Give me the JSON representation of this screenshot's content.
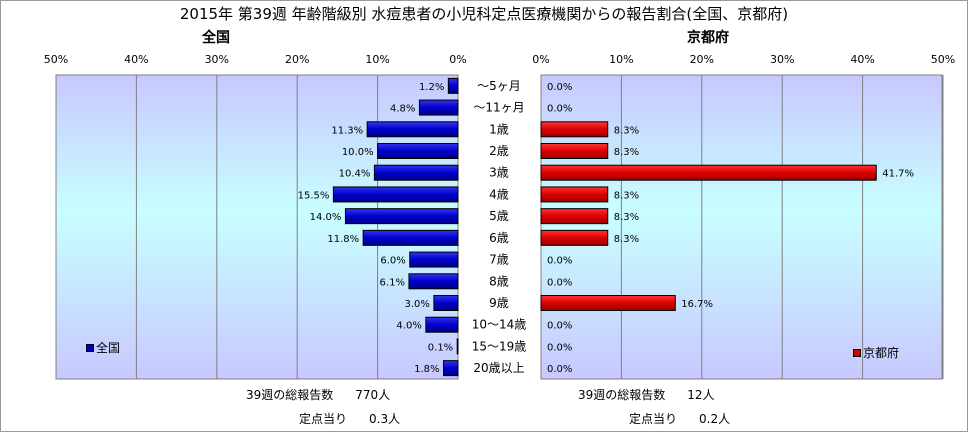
{
  "chart_data": {
    "type": "bar",
    "title": "2015年 第39週 年齢階級別 水痘患者の小児科定点医療機関からの報告割合(全国、京都府)",
    "categories": [
      "～5ヶ月",
      "～11ヶ月",
      "1歳",
      "2歳",
      "3歳",
      "4歳",
      "5歳",
      "6歳",
      "7歳",
      "8歳",
      "9歳",
      "10～14歳",
      "15～19歳",
      "20歳以上"
    ],
    "xlim": [
      0,
      50
    ],
    "ticks": [
      "50%",
      "40%",
      "30%",
      "20%",
      "10%",
      "0%",
      "0%",
      "10%",
      "20%",
      "30%",
      "40%",
      "50%"
    ],
    "grid": true,
    "series": [
      {
        "name": "全国",
        "panel_title": "全国",
        "color": "#0000cc",
        "values": [
          1.2,
          4.8,
          11.3,
          10.0,
          10.4,
          15.5,
          14.0,
          11.8,
          6.0,
          6.1,
          3.0,
          4.0,
          0.1,
          1.8
        ],
        "labels": [
          "1.2%",
          "4.8%",
          "11.3%",
          "10.0%",
          "10.4%",
          "15.5%",
          "14.0%",
          "11.8%",
          "6.0%",
          "6.1%",
          "3.0%",
          "4.0%",
          "0.1%",
          "1.8%"
        ],
        "legend": "bottom-left"
      },
      {
        "name": "京都府",
        "panel_title": "京都府",
        "color": "#dd0000",
        "values": [
          0.0,
          0.0,
          8.3,
          8.3,
          41.7,
          8.3,
          8.3,
          8.3,
          0.0,
          0.0,
          16.7,
          0.0,
          0.0,
          0.0
        ],
        "labels": [
          "0.0%",
          "0.0%",
          "8.3%",
          "8.3%",
          "41.7%",
          "8.3%",
          "8.3%",
          "8.3%",
          "0.0%",
          "0.0%",
          "16.7%",
          "0.0%",
          "0.0%",
          "0.0%"
        ],
        "legend": "bottom-right"
      }
    ]
  },
  "footer": {
    "national": {
      "total_label": "39週の総報告数",
      "total_value": "770人",
      "per_label": "定点当り",
      "per_value": "0.3人"
    },
    "kyoto": {
      "total_label": "39週の総報告数",
      "total_value": "12人",
      "per_label": "定点当り",
      "per_value": "0.2人"
    }
  }
}
